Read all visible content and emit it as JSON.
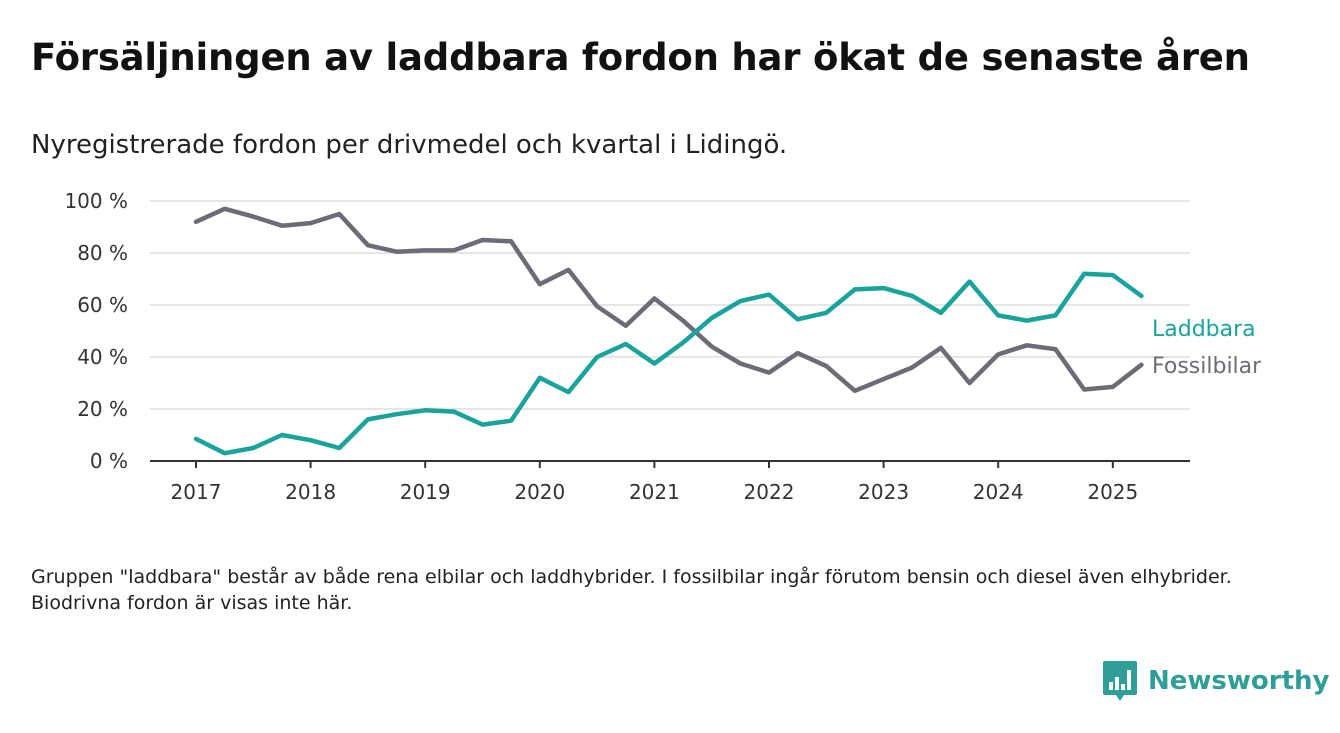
{
  "title": "Försäljningen av laddbara fordon har ökat de senaste åren",
  "subtitle": "Nyregistrerade fordon per drivmedel och kvartal i Lidingö.",
  "note": "Gruppen \"laddbara\" består av både rena elbilar och laddhybrider. I fossilbilar ingår förutom bensin och diesel även elhybrider. Biodrivna fordon är visas inte här.",
  "brand": {
    "name": "Newsworthy",
    "icon": "bar-chart-icon"
  },
  "colors": {
    "laddbara": "#1aa39a",
    "fossil": "#6d6b74",
    "grid": "#dddddd",
    "axis": "#333333"
  },
  "chart_data": {
    "type": "line",
    "ylim": [
      0,
      100
    ],
    "y_ticks": [
      "0 %",
      "20 %",
      "40 %",
      "60 %",
      "80 %",
      "100 %"
    ],
    "x_ticks": [
      "2017",
      "2018",
      "2019",
      "2020",
      "2021",
      "2022",
      "2023",
      "2024",
      "2025"
    ],
    "x": [
      "2017 Q1",
      "2017 Q2",
      "2017 Q3",
      "2017 Q4",
      "2018 Q1",
      "2018 Q2",
      "2018 Q3",
      "2018 Q4",
      "2019 Q1",
      "2019 Q2",
      "2019 Q3",
      "2019 Q4",
      "2020 Q1",
      "2020 Q2",
      "2020 Q3",
      "2020 Q4",
      "2021 Q1",
      "2021 Q2",
      "2021 Q3",
      "2021 Q4",
      "2022 Q1",
      "2022 Q2",
      "2022 Q3",
      "2022 Q4",
      "2023 Q1",
      "2023 Q2",
      "2023 Q3",
      "2023 Q4",
      "2024 Q1",
      "2024 Q2",
      "2024 Q3",
      "2024 Q4",
      "2025 Q1",
      "2025 Q2"
    ],
    "grid": true,
    "series": [
      {
        "name": "Laddbara",
        "color": "#1aa39a",
        "values": [
          8.5,
          3,
          5,
          10,
          8,
          5,
          16,
          18,
          19.5,
          19,
          14,
          15.5,
          32,
          26.5,
          40,
          45,
          37.5,
          45.5,
          55,
          61.5,
          64,
          54.5,
          57,
          66,
          66.5,
          63.5,
          57,
          69,
          56,
          54,
          56,
          72,
          71.5,
          63.5
        ]
      },
      {
        "name": "Fossilbilar",
        "color": "#6d6b74",
        "values": [
          92,
          97,
          94,
          90.5,
          91.5,
          95,
          83,
          80.5,
          81,
          81,
          85,
          84.5,
          68,
          73.5,
          59.5,
          52,
          62.5,
          54,
          44,
          37.5,
          34,
          41.5,
          36.5,
          27,
          31.5,
          36,
          43.5,
          30,
          41,
          44.5,
          43,
          27.5,
          28.5,
          37
        ]
      }
    ]
  }
}
